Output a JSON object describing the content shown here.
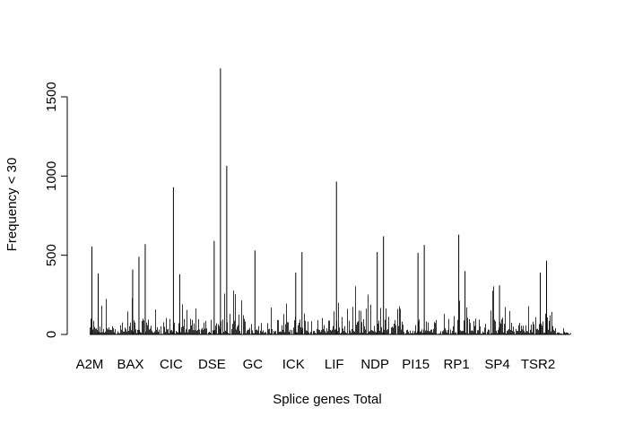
{
  "chart_data": {
    "type": "bar",
    "xlabel": "Splice genes Total",
    "ylabel": "Frequency < 30",
    "ylim": [
      0,
      1700
    ],
    "yticks": [
      0,
      500,
      1000,
      1500
    ],
    "ytick_labels": [
      "0",
      "500",
      "1000",
      "1500"
    ],
    "x_tick_labels": [
      "A2M",
      "BAX",
      "CIC",
      "DSE",
      "GC",
      "ICK",
      "LIF",
      "NDP",
      "PI15",
      "RP1",
      "SP4",
      "TSR2"
    ],
    "bar_color": "#000000",
    "grid": false,
    "legend": "none",
    "peaks": [
      {
        "near": "A2M",
        "value": 555
      },
      {
        "near": "A2M",
        "value": 385
      },
      {
        "near": "BAX",
        "value": 410
      },
      {
        "near": "BAX",
        "value": 490
      },
      {
        "near": "BAX",
        "value": 570
      },
      {
        "near": "CIC",
        "value": 930
      },
      {
        "near": "CIC",
        "value": 380
      },
      {
        "near": "DSE",
        "value": 590
      },
      {
        "near": "DSE",
        "value": 1680
      },
      {
        "near": "DSE",
        "value": 1065
      },
      {
        "near": "GC",
        "value": 530
      },
      {
        "near": "ICK",
        "value": 390
      },
      {
        "near": "ICK",
        "value": 520
      },
      {
        "near": "LIF",
        "value": 965
      },
      {
        "near": "NDP",
        "value": 520
      },
      {
        "near": "NDP",
        "value": 620
      },
      {
        "near": "PI15",
        "value": 515
      },
      {
        "near": "PI15",
        "value": 565
      },
      {
        "near": "RP1",
        "value": 630
      },
      {
        "near": "RP1",
        "value": 400
      },
      {
        "near": "SP4",
        "value": 310
      },
      {
        "near": "TSR2",
        "value": 390
      },
      {
        "near": "TSR2",
        "value": 465
      }
    ]
  }
}
